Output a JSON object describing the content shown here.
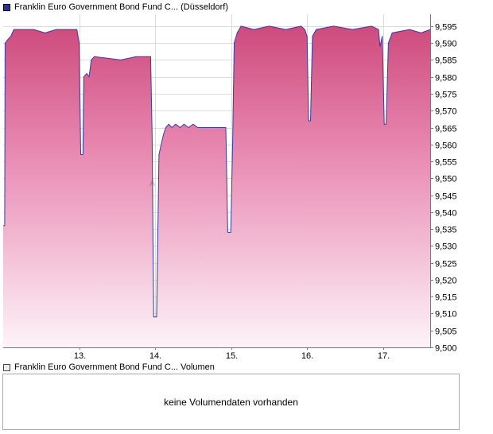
{
  "header": {
    "title": "Franklin Euro Government Bond Fund C... (Düsseldorf)"
  },
  "volume_panel": {
    "legend": "Franklin Euro Government Bond Fund C... Volumen",
    "message": "keine Volumendaten vorhanden"
  },
  "watermark": "A",
  "colors": {
    "line": "#3b3b9e",
    "legend_price_swatch": "#2f2f9e",
    "grid": "#dcdcdc",
    "axis": "#777777",
    "area_top": "#cb4578",
    "area_mid": "#ea8fb6",
    "area_bottom": "#fdf3f8"
  },
  "chart_data": {
    "type": "area",
    "title": "Franklin Euro Government Bond Fund C... (Düsseldorf)",
    "xlabel": "",
    "ylabel": "",
    "grid": true,
    "legend_position": "top-left",
    "x_domain": [
      12.0,
      17.62
    ],
    "y_domain": [
      9.5,
      9.5985
    ],
    "x_ticks": [
      {
        "value": 13,
        "label": "13."
      },
      {
        "value": 14,
        "label": "14."
      },
      {
        "value": 15,
        "label": "15."
      },
      {
        "value": 16,
        "label": "16."
      },
      {
        "value": 17,
        "label": "17."
      }
    ],
    "y_ticks": [
      {
        "value": 9.595,
        "label": "9,595"
      },
      {
        "value": 9.59,
        "label": "9,590"
      },
      {
        "value": 9.585,
        "label": "9,585"
      },
      {
        "value": 9.58,
        "label": "9,580"
      },
      {
        "value": 9.575,
        "label": "9,575"
      },
      {
        "value": 9.57,
        "label": "9,570"
      },
      {
        "value": 9.565,
        "label": "9,565"
      },
      {
        "value": 9.56,
        "label": "9,560"
      },
      {
        "value": 9.555,
        "label": "9,555"
      },
      {
        "value": 9.55,
        "label": "9,550"
      },
      {
        "value": 9.545,
        "label": "9,545"
      },
      {
        "value": 9.54,
        "label": "9,540"
      },
      {
        "value": 9.535,
        "label": "9,535"
      },
      {
        "value": 9.53,
        "label": "9,530"
      },
      {
        "value": 9.525,
        "label": "9,525"
      },
      {
        "value": 9.52,
        "label": "9,520"
      },
      {
        "value": 9.515,
        "label": "9,515"
      },
      {
        "value": 9.51,
        "label": "9,510"
      },
      {
        "value": 9.505,
        "label": "9,505"
      },
      {
        "value": 9.5,
        "label": "9,500"
      }
    ],
    "series": [
      {
        "name": "Franklin Euro Government Bond Fund C... (Düsseldorf)",
        "points": [
          [
            12.0,
            9.536
          ],
          [
            12.02,
            9.536
          ],
          [
            12.025,
            9.59
          ],
          [
            12.06,
            9.591
          ],
          [
            12.1,
            9.592
          ],
          [
            12.14,
            9.594
          ],
          [
            12.4,
            9.594
          ],
          [
            12.55,
            9.593
          ],
          [
            12.7,
            9.594
          ],
          [
            12.97,
            9.594
          ],
          [
            13.0,
            9.59
          ],
          [
            13.02,
            9.557
          ],
          [
            13.05,
            9.557
          ],
          [
            13.06,
            9.58
          ],
          [
            13.1,
            9.581
          ],
          [
            13.13,
            9.58
          ],
          [
            13.16,
            9.585
          ],
          [
            13.2,
            9.586
          ],
          [
            13.55,
            9.585
          ],
          [
            13.75,
            9.586
          ],
          [
            13.94,
            9.586
          ],
          [
            13.96,
            9.563
          ],
          [
            13.98,
            9.509
          ],
          [
            14.02,
            9.509
          ],
          [
            14.05,
            9.557
          ],
          [
            14.08,
            9.56
          ],
          [
            14.11,
            9.563
          ],
          [
            14.14,
            9.565
          ],
          [
            14.18,
            9.566
          ],
          [
            14.22,
            9.565
          ],
          [
            14.27,
            9.566
          ],
          [
            14.33,
            9.565
          ],
          [
            14.38,
            9.566
          ],
          [
            14.44,
            9.565
          ],
          [
            14.5,
            9.566
          ],
          [
            14.56,
            9.565
          ],
          [
            14.8,
            9.565
          ],
          [
            14.93,
            9.565
          ],
          [
            14.955,
            9.534
          ],
          [
            14.995,
            9.534
          ],
          [
            15.02,
            9.561
          ],
          [
            15.04,
            9.59
          ],
          [
            15.08,
            9.593
          ],
          [
            15.13,
            9.595
          ],
          [
            15.3,
            9.594
          ],
          [
            15.5,
            9.595
          ],
          [
            15.72,
            9.594
          ],
          [
            15.92,
            9.595
          ],
          [
            15.97,
            9.594
          ],
          [
            16.0,
            9.592
          ],
          [
            16.02,
            9.567
          ],
          [
            16.045,
            9.567
          ],
          [
            16.07,
            9.592
          ],
          [
            16.12,
            9.594
          ],
          [
            16.35,
            9.595
          ],
          [
            16.6,
            9.594
          ],
          [
            16.85,
            9.595
          ],
          [
            16.94,
            9.594
          ],
          [
            16.96,
            9.589
          ],
          [
            16.99,
            9.592
          ],
          [
            17.015,
            9.566
          ],
          [
            17.04,
            9.566
          ],
          [
            17.07,
            9.59
          ],
          [
            17.12,
            9.593
          ],
          [
            17.35,
            9.594
          ],
          [
            17.5,
            9.593
          ],
          [
            17.62,
            9.594
          ]
        ]
      }
    ]
  }
}
